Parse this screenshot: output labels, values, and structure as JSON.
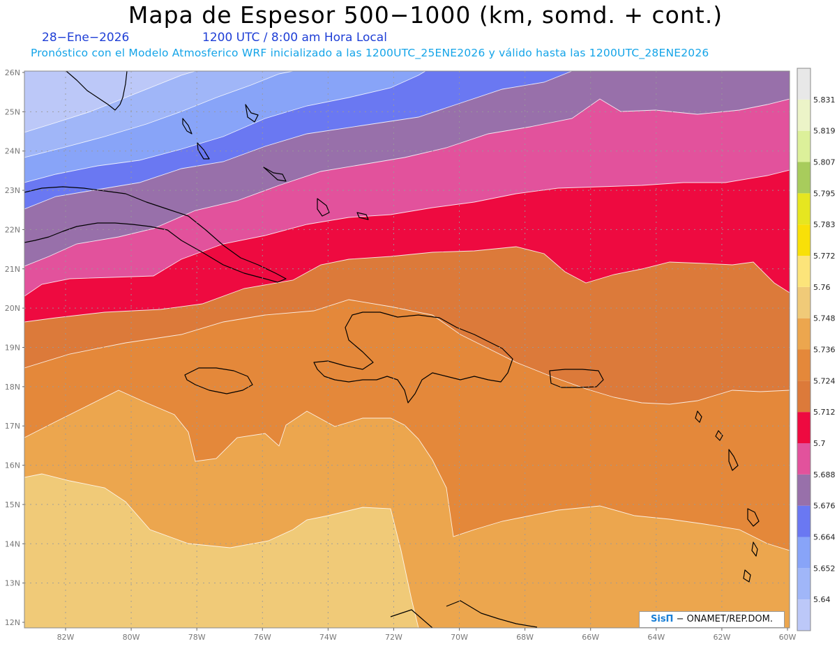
{
  "header": {
    "title": "Mapa de Espesor 500−1000 (km, somd. + cont.)",
    "date": "28−Ene−2026",
    "time": "1200 UTC / 8:00 am Hora Local",
    "description": "Pronóstico con el Modelo Atmosferico WRF inicializado a las 1200UTC_25ENE2026 y válido hasta las  1200UTC_28ENE2026"
  },
  "axes": {
    "lat_labels": [
      "26N",
      "25N",
      "24N",
      "23N",
      "22N",
      "21N",
      "20N",
      "19N",
      "18N",
      "17N",
      "16N",
      "15N",
      "14N",
      "13N",
      "12N"
    ],
    "lon_labels": [
      "82W",
      "80W",
      "78W",
      "76W",
      "74W",
      "72W",
      "70W",
      "68W",
      "66W",
      "64W",
      "62W",
      "60W"
    ]
  },
  "legend": {
    "levels": [
      "5.64",
      "5.652",
      "5.664",
      "5.676",
      "5.688",
      "5.7",
      "5.712",
      "5.724",
      "5.736",
      "5.748",
      "5.76",
      "5.772",
      "5.783",
      "5.795",
      "5.807",
      "5.819",
      "5.831"
    ],
    "colors": [
      "#bcc8f8",
      "#a0b6f8",
      "#88a4f8",
      "#6a78f2",
      "#9870aa",
      "#e2529c",
      "#ee0a40",
      "#dc7a3a",
      "#e4883a",
      "#eca64e",
      "#f0ca78",
      "#fce47a",
      "#f8e008",
      "#e6e620",
      "#a8cc5c",
      "#dcf09a",
      "#ecf4c8",
      "#e8e8e8"
    ]
  },
  "credit": {
    "brand": "SisΠ",
    "text": " − ONAMET/REP.DOM."
  }
}
